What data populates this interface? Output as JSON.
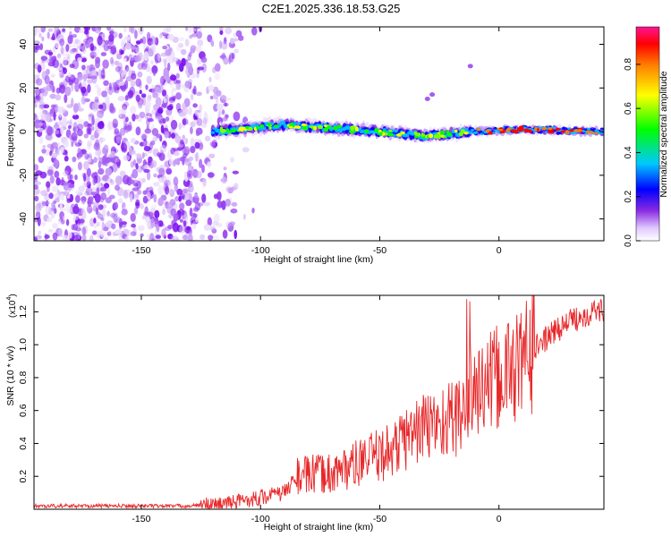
{
  "title": "C2E1.2025.336.18.53.G25",
  "chart_data": [
    {
      "type": "heatmap",
      "xlabel": "Height of straight line (km)",
      "ylabel": "Frequency (Hz)",
      "xlim": [
        -195,
        44
      ],
      "ylim": [
        -50,
        48
      ],
      "xticks": [
        -150,
        -100,
        -50,
        0
      ],
      "yticks": [
        -40,
        -20,
        0,
        20,
        40
      ],
      "colorbar": {
        "label": "Normalized spectral amplitude",
        "range": [
          0,
          0.97
        ],
        "ticks": [
          0.0,
          0.2,
          0.4,
          0.6,
          0.8
        ]
      },
      "features": {
        "scattered_noise_x_range": [
          -195,
          -110
        ],
        "coherent_band_x_range": [
          -120,
          44
        ],
        "coherent_band_center_hz": [
          0,
          3,
          2,
          0,
          -2,
          0,
          1,
          0
        ],
        "coherent_band_x": [
          -120,
          -90,
          -75,
          -50,
          -30,
          -12,
          10,
          44
        ]
      }
    },
    {
      "type": "line",
      "xlabel": "Height of straight line (km)",
      "ylabel": "SNR (10 * v/v)",
      "y_scale_note": "(x10^4)",
      "y_scale_base": "(x10",
      "y_scale_exp": "4",
      "y_scale_close": ")",
      "xlim": [
        -195,
        44
      ],
      "ylim": [
        0,
        1.3
      ],
      "xticks": [
        -150,
        -100,
        -50,
        0
      ],
      "yticks": [
        0.2,
        0.4,
        0.6,
        0.8,
        1.0,
        1.2
      ],
      "ytick_labels": [
        "0.2",
        "0.4",
        "0.6",
        "0.8",
        "1.0",
        "1.2"
      ],
      "series": [
        {
          "name": "SNR",
          "color": "#e8282a",
          "trend_x": [
            -195,
            -130,
            -115,
            -105,
            -90,
            -85,
            -70,
            -55,
            -45,
            -35,
            -20,
            -15,
            -12,
            -5,
            5,
            15,
            25,
            35,
            44
          ],
          "trend_y": [
            0.02,
            0.02,
            0.03,
            0.06,
            0.1,
            0.2,
            0.22,
            0.3,
            0.36,
            0.48,
            0.55,
            0.58,
            0.72,
            0.75,
            0.85,
            0.98,
            1.1,
            1.18,
            1.22
          ]
        }
      ]
    }
  ]
}
